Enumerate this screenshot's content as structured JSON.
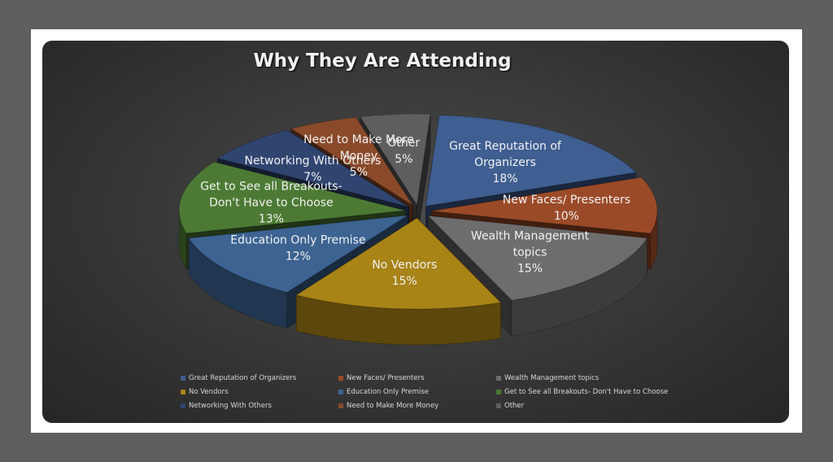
{
  "chart_data": {
    "type": "pie",
    "title": "Why They Are Attending",
    "slices": [
      {
        "label": "Great Reputation of Organizers",
        "chart_label": "Great Reputation of\nOrganizers\n18%",
        "value": 18,
        "color": "#3f5e91"
      },
      {
        "label": "New Faces/ Presenters",
        "chart_label": "New Faces/ Presenters\n10%",
        "value": 10,
        "color": "#9b4a27"
      },
      {
        "label": "Wealth Management topics",
        "chart_label": "Wealth Management\ntopics\n15%",
        "value": 15,
        "color": "#6d6d6d"
      },
      {
        "label": "No Vendors",
        "chart_label": "No Vendors\n15%",
        "value": 15,
        "color": "#a88316"
      },
      {
        "label": "Education Only Premise",
        "chart_label": "Education Only Premise\n12%",
        "value": 12,
        "color": "#3c6391"
      },
      {
        "label": "Get to See all Breakouts- Don't Have to Choose",
        "chart_label": "Get to See all Breakouts-\nDon't Have to Choose\n13%",
        "value": 13,
        "color": "#4c7a34"
      },
      {
        "label": "Networking With Others",
        "chart_label": "Networking With Others\n7%",
        "value": 7,
        "color": "#2f4570"
      },
      {
        "label": "Need to Make More Money",
        "chart_label": "Need to Make More\nMoney\n5%",
        "value": 5,
        "color": "#8a4a2a"
      },
      {
        "label": "Other",
        "chart_label": "Other\n5%",
        "value": 5,
        "color": "#5e5e5e"
      }
    ],
    "legend_position": "bottom"
  }
}
